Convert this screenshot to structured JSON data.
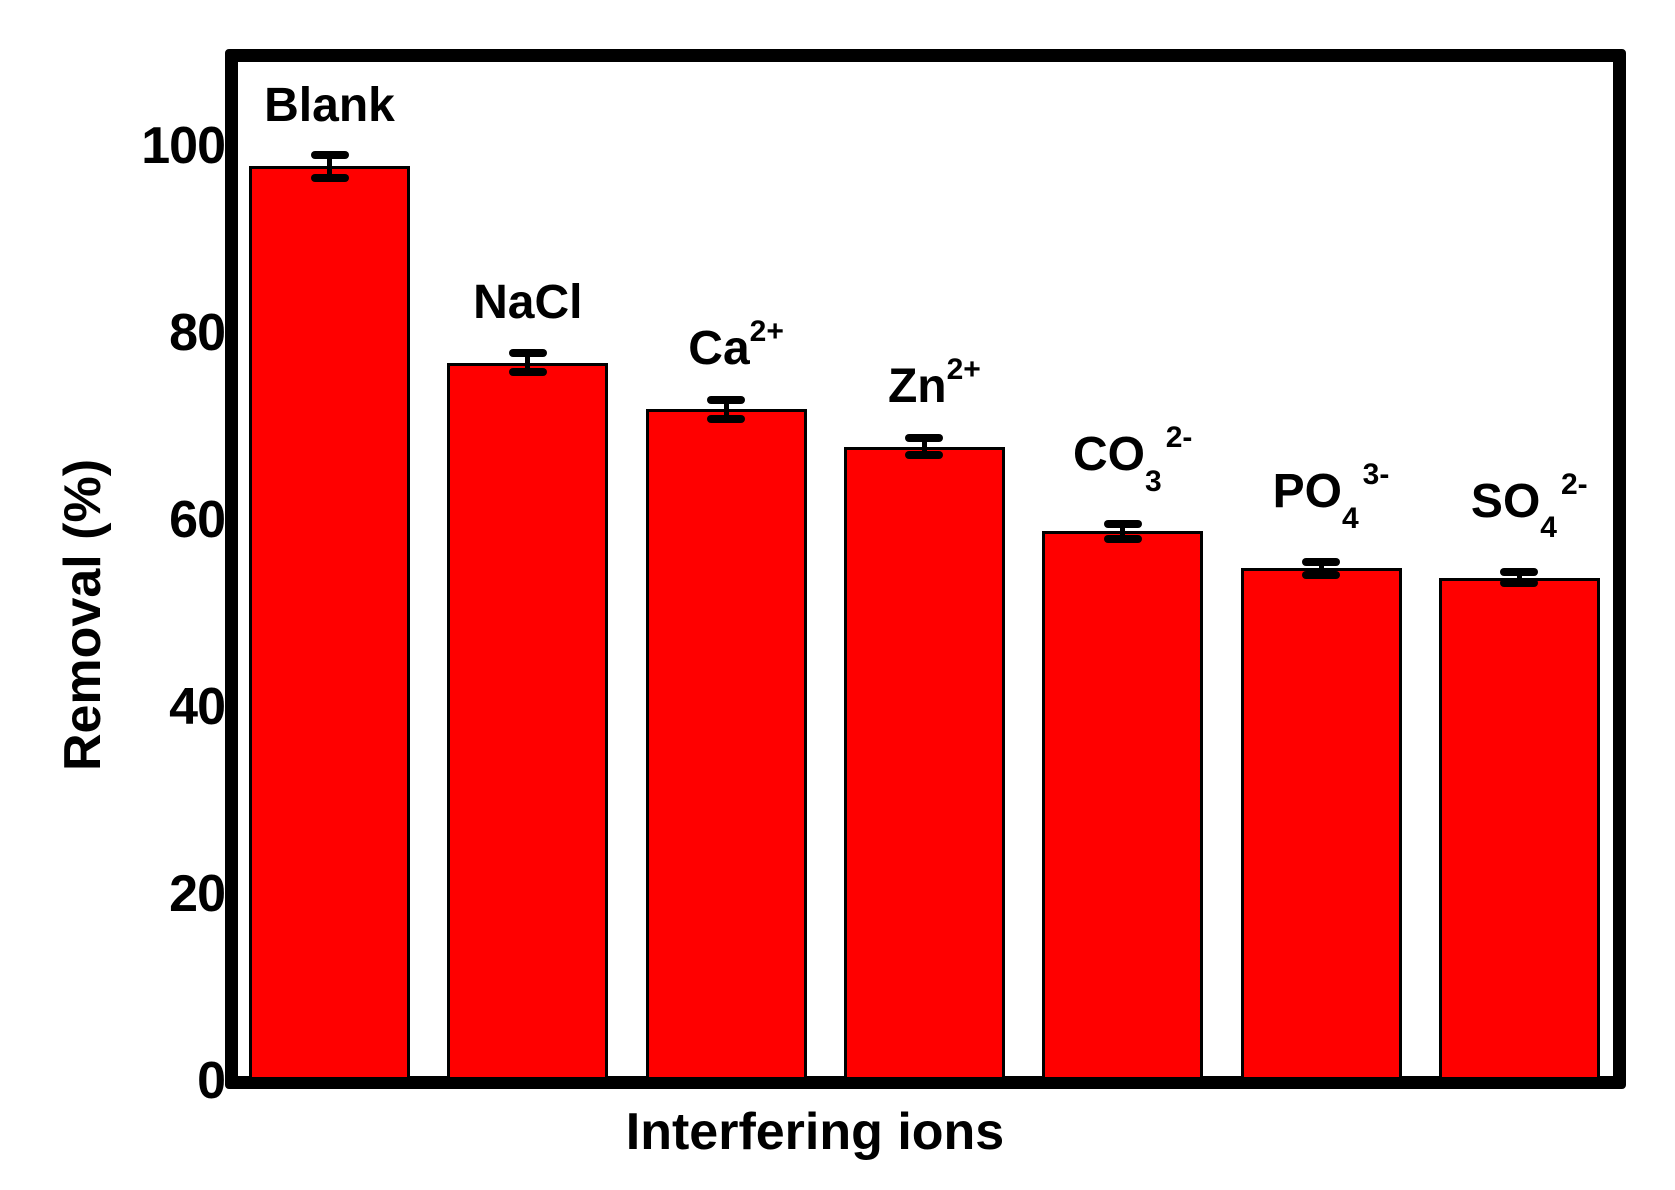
{
  "chart_data": {
    "type": "bar",
    "title": "",
    "xlabel": "Interfering ions",
    "ylabel": "Removal (%)",
    "ylim": [
      0,
      110
    ],
    "yticks": [
      0,
      20,
      40,
      60,
      80,
      100
    ],
    "grid": false,
    "legend": null,
    "bar_color": "#ff0000",
    "categories": [
      "Blank",
      "NaCl",
      "Ca2+",
      "Zn2+",
      "CO3 2-",
      "PO4 3-",
      "SO4 2-"
    ],
    "values": [
      97.5,
      76.5,
      71.5,
      67.5,
      58.5,
      54.5,
      53.5
    ],
    "error": [
      1.2,
      1.0,
      1.0,
      0.9,
      0.8,
      0.7,
      0.6
    ],
    "annotations": "Each bar is labeled above with its interfering ion name"
  },
  "axis": {
    "ylabel": "Removal (%)",
    "xlabel": "Interfering ions",
    "ticks": [
      "0",
      "20",
      "40",
      "60",
      "80",
      "100"
    ]
  },
  "bars": [
    {
      "base": "Blank",
      "sub": "",
      "sup": ""
    },
    {
      "base": "NaCl",
      "sub": "",
      "sup": ""
    },
    {
      "base": "Ca",
      "sub": "",
      "sup": "2+"
    },
    {
      "base": "Zn",
      "sub": "",
      "sup": "2+"
    },
    {
      "base": "CO",
      "sub": "3",
      "sup": "2-"
    },
    {
      "base": "PO",
      "sub": "4",
      "sup": "3-"
    },
    {
      "base": "SO",
      "sub": "4",
      "sup": "2-"
    }
  ]
}
